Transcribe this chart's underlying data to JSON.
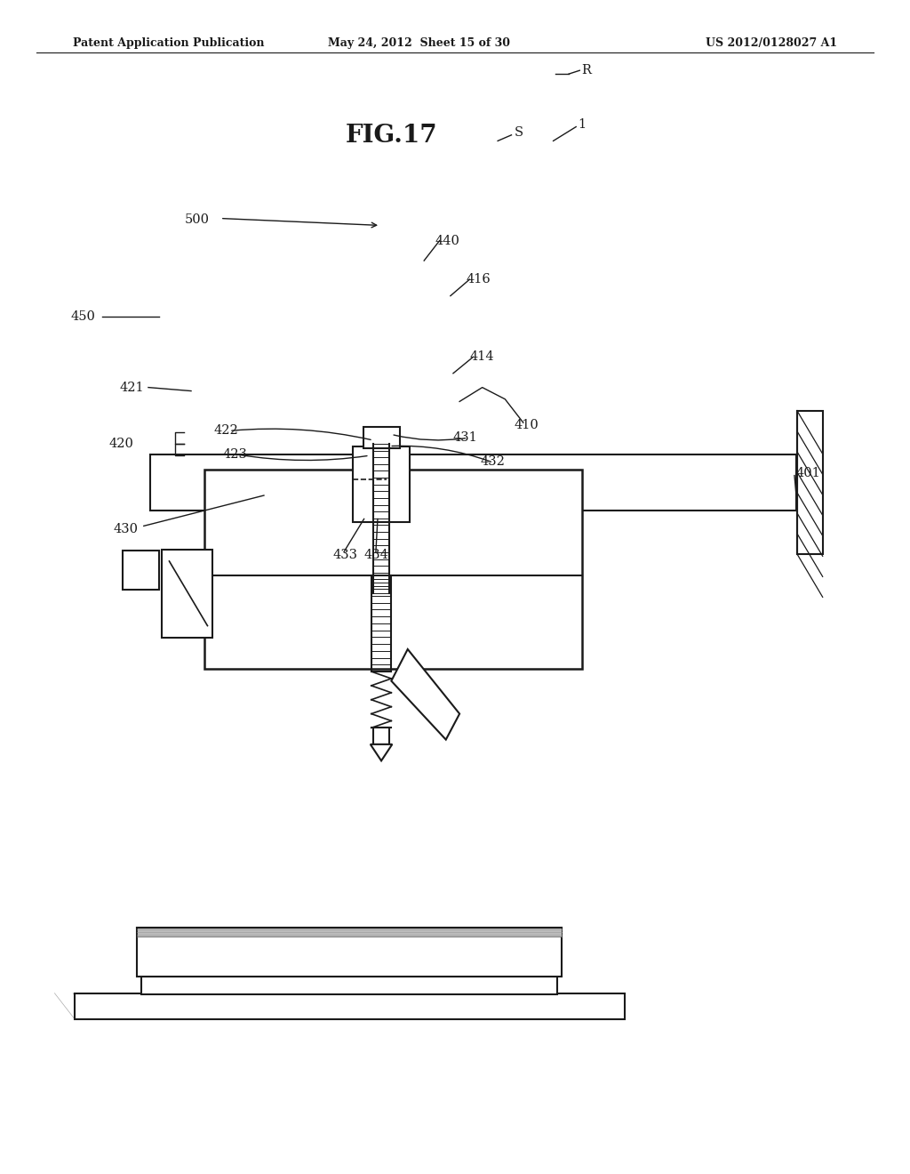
{
  "background_color": "#ffffff",
  "header_left": "Patent Application Publication",
  "header_mid": "May 24, 2012  Sheet 15 of 30",
  "header_right": "US 2012/0128027 A1",
  "fig_title": "FIG.17"
}
